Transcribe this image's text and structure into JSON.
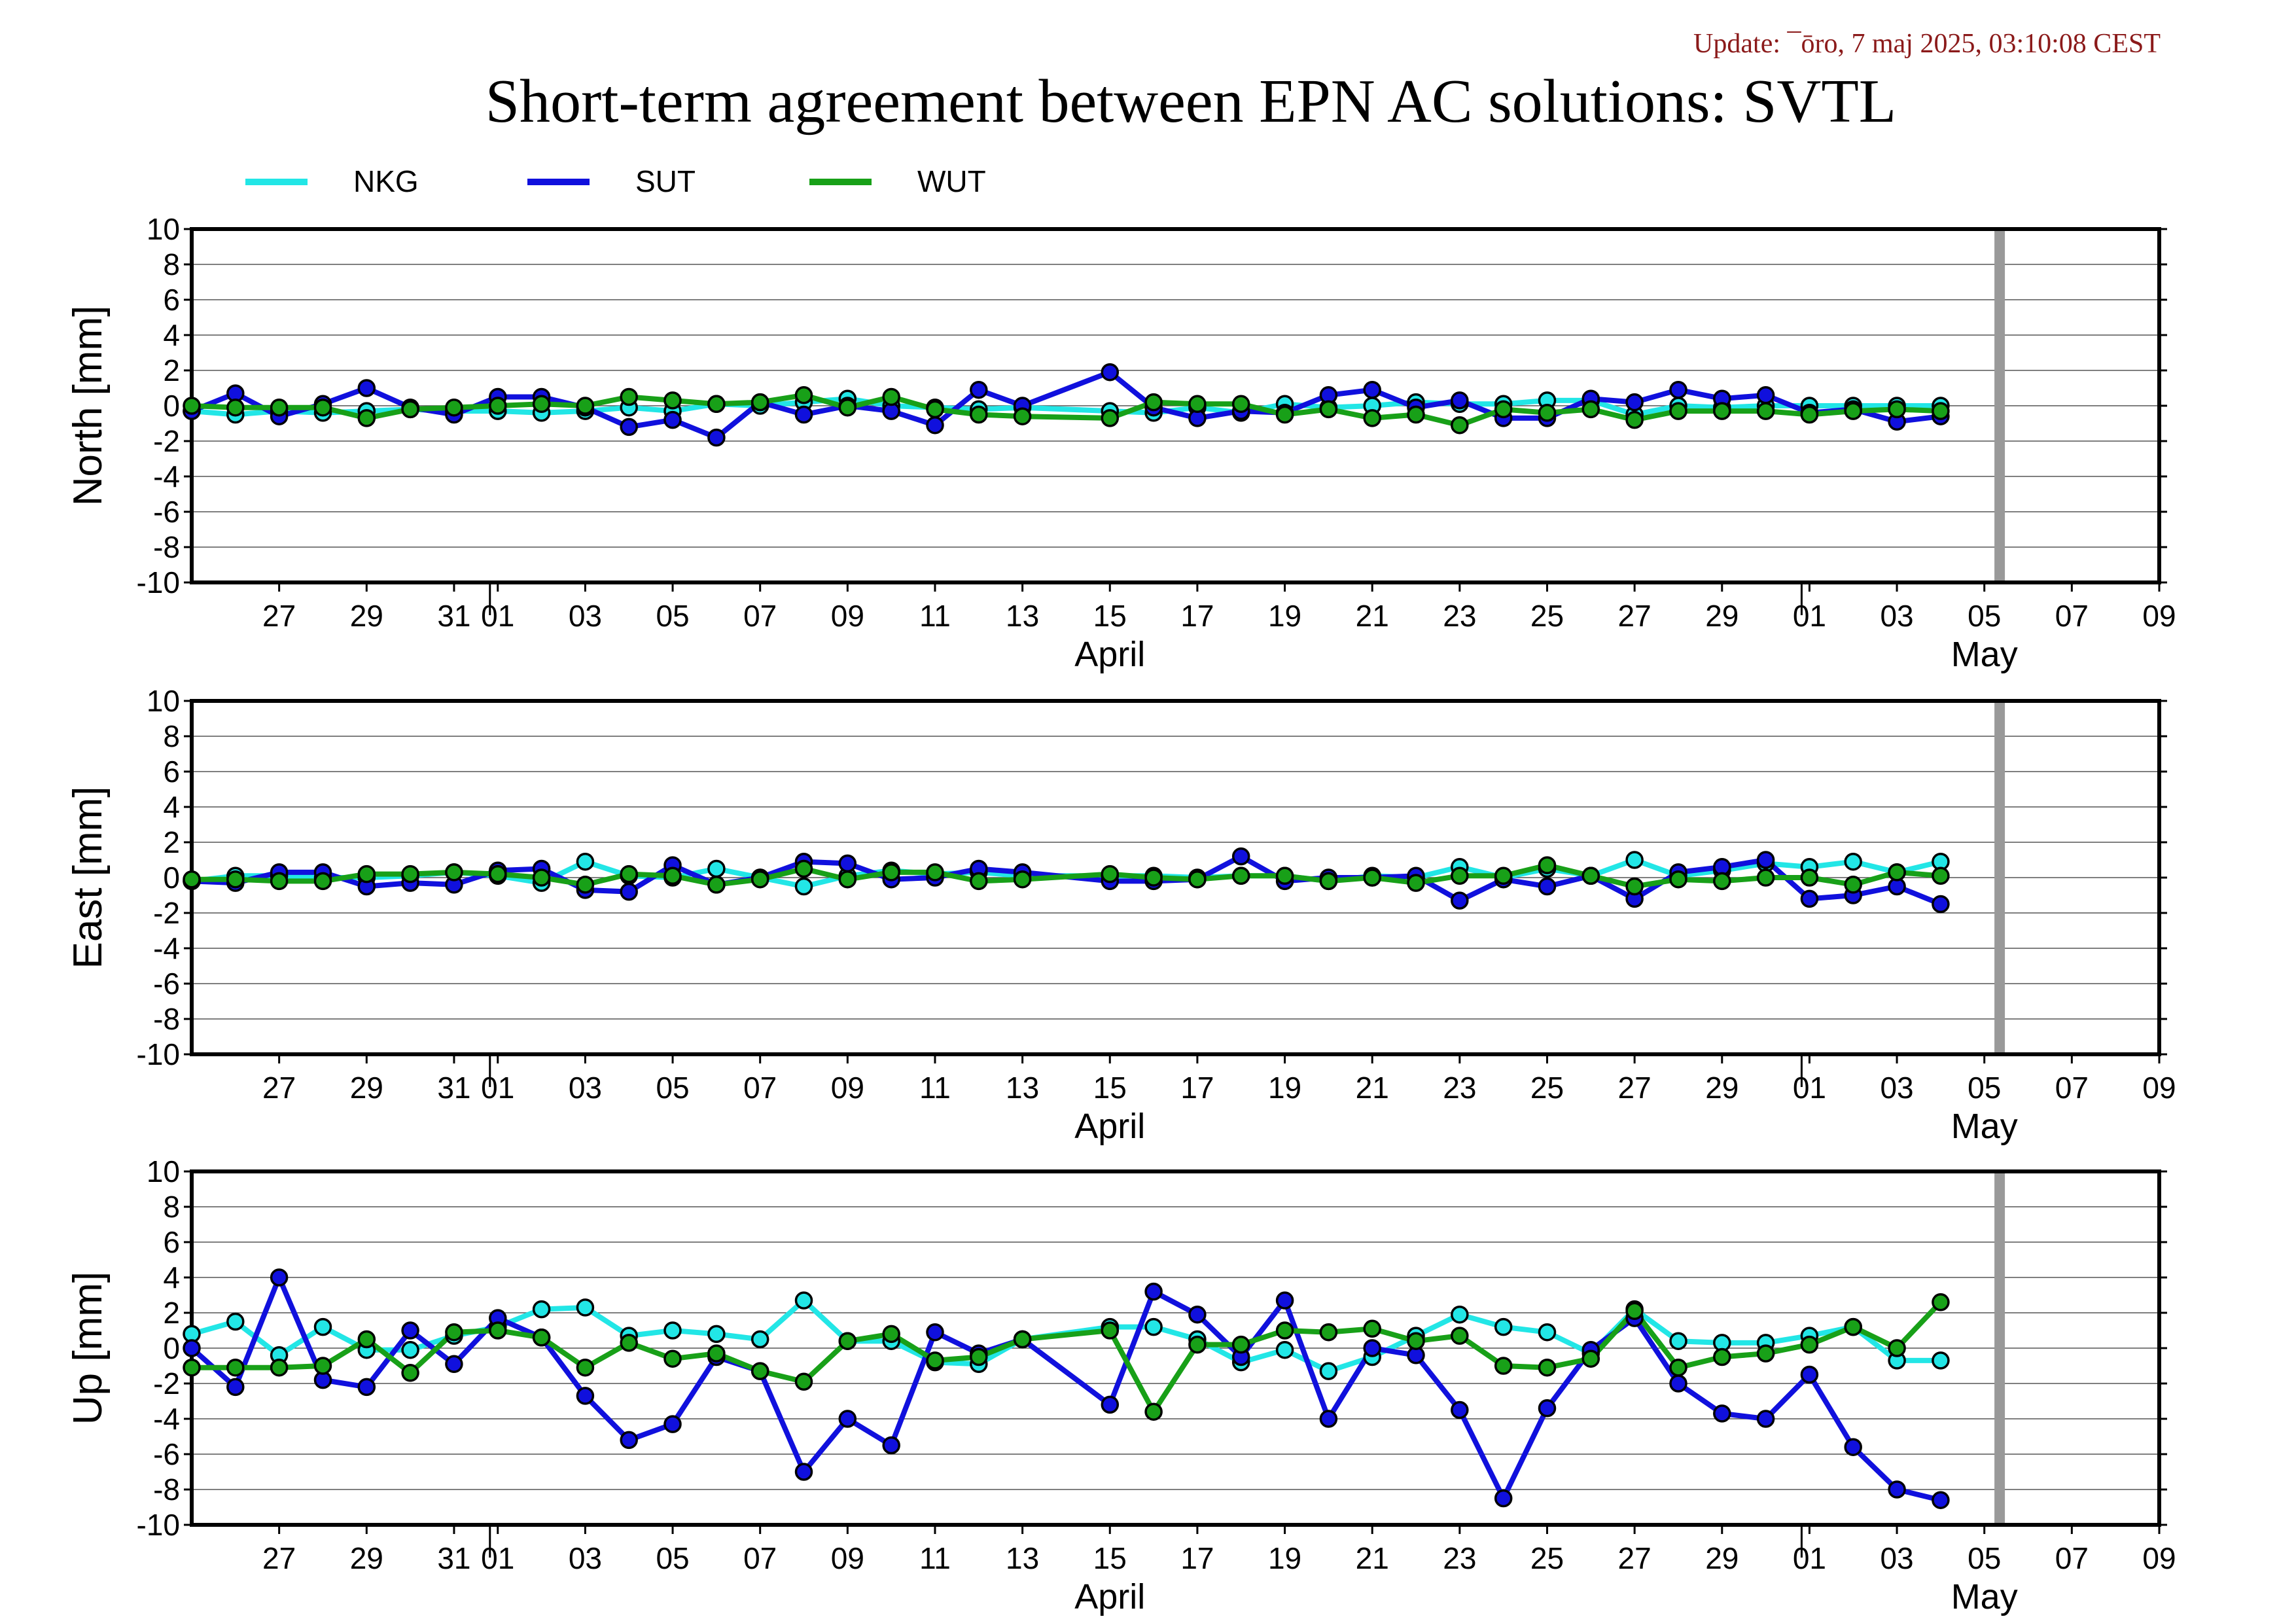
{
  "update_text": "Update: ¯ōro, 7 maj 2025, 03:10:08 CEST",
  "title": "Short-term agreement between EPN AC solutions: SVTL",
  "colors": {
    "NKG": "#22e6e6",
    "SUT": "#1010dd",
    "WUT": "#18a018",
    "marker_outline": "#000000",
    "future_band": "#999999",
    "grid": "#555555"
  },
  "legend": [
    {
      "name": "NKG",
      "color": "#22e6e6"
    },
    {
      "name": "SUT",
      "color": "#1010dd"
    },
    {
      "name": "WUT",
      "color": "#18a018"
    }
  ],
  "x_axis": {
    "tick_labels": [
      "27",
      "29",
      "31",
      "01",
      "03",
      "05",
      "07",
      "09",
      "11",
      "13",
      "15",
      "17",
      "19",
      "21",
      "23",
      "25",
      "27",
      "29",
      "01",
      "03",
      "05",
      "07",
      "09"
    ],
    "tick_dates": [
      "2025-03-27",
      "2025-03-29",
      "2025-03-31",
      "2025-04-01",
      "2025-04-03",
      "2025-04-05",
      "2025-04-07",
      "2025-04-09",
      "2025-04-11",
      "2025-04-13",
      "2025-04-15",
      "2025-04-17",
      "2025-04-19",
      "2025-04-21",
      "2025-04-23",
      "2025-04-25",
      "2025-04-27",
      "2025-04-29",
      "2025-05-01",
      "2025-05-03",
      "2025-05-05",
      "2025-05-07",
      "2025-05-09"
    ],
    "month_labels": [
      "April",
      "May"
    ]
  },
  "chart_data": [
    {
      "type": "line",
      "ylabel": "North [mm]",
      "ylim": [
        -10,
        10
      ],
      "yticks": [
        10,
        8,
        6,
        4,
        2,
        0,
        -2,
        -4,
        -6,
        -8,
        -10
      ],
      "xlim": [
        "2025-03-25",
        "2025-05-09"
      ],
      "grid": true,
      "marker_days": [
        0,
        1,
        2,
        3,
        4,
        5,
        6,
        7,
        8,
        9,
        10,
        11,
        12,
        13,
        14,
        15,
        16,
        17,
        18,
        19,
        21,
        22,
        23,
        24,
        25,
        26,
        27,
        28,
        29,
        30,
        31,
        32,
        33,
        34,
        35,
        36,
        37,
        38,
        39,
        40
      ],
      "series": [
        {
          "name": "NKG",
          "x": [
            "2025-03-25",
            "2025-03-26",
            "2025-03-27",
            "2025-03-28",
            "2025-03-29",
            "2025-03-30",
            "2025-03-31",
            "2025-04-01",
            "2025-04-02",
            "2025-04-03",
            "2025-04-04",
            "2025-04-05",
            "2025-04-06",
            "2025-04-07",
            "2025-04-08",
            "2025-04-09",
            "2025-04-10",
            "2025-04-11",
            "2025-04-12",
            "2025-04-13",
            "2025-04-15",
            "2025-04-16",
            "2025-04-17",
            "2025-04-18",
            "2025-04-19",
            "2025-04-20",
            "2025-04-21",
            "2025-04-22",
            "2025-04-23",
            "2025-04-24",
            "2025-04-25",
            "2025-04-26",
            "2025-04-27",
            "2025-04-28",
            "2025-04-29",
            "2025-04-30",
            "2025-05-01",
            "2025-05-02",
            "2025-05-03",
            "2025-05-04"
          ],
          "values": [
            -0.3,
            -0.5,
            -0.3,
            -0.4,
            -0.3,
            -0.2,
            -0.3,
            -0.3,
            -0.4,
            -0.3,
            -0.1,
            -0.3,
            0.1,
            0.0,
            0.2,
            0.4,
            0.0,
            -0.1,
            -0.2,
            -0.1,
            -0.3,
            -0.4,
            -0.1,
            -0.4,
            0.1,
            -0.1,
            0.0,
            0.2,
            0.1,
            0.1,
            0.3,
            0.3,
            -0.5,
            0.0,
            -0.1,
            0.0,
            0.0,
            0.0,
            0.0,
            0.0
          ]
        },
        {
          "name": "SUT",
          "x": [
            "2025-03-25",
            "2025-03-26",
            "2025-03-27",
            "2025-03-28",
            "2025-03-29",
            "2025-03-30",
            "2025-03-31",
            "2025-04-01",
            "2025-04-02",
            "2025-04-03",
            "2025-04-04",
            "2025-04-05",
            "2025-04-06",
            "2025-04-07",
            "2025-04-08",
            "2025-04-09",
            "2025-04-10",
            "2025-04-11",
            "2025-04-12",
            "2025-04-13",
            "2025-04-15",
            "2025-04-16",
            "2025-04-17",
            "2025-04-18",
            "2025-04-19",
            "2025-04-20",
            "2025-04-21",
            "2025-04-22",
            "2025-04-23",
            "2025-04-24",
            "2025-04-25",
            "2025-04-26",
            "2025-04-27",
            "2025-04-28",
            "2025-04-29",
            "2025-04-30",
            "2025-05-01",
            "2025-05-02",
            "2025-05-03",
            "2025-05-04"
          ],
          "values": [
            -0.3,
            0.7,
            -0.6,
            0.1,
            1.0,
            -0.1,
            -0.5,
            0.5,
            0.5,
            -0.1,
            -1.2,
            -0.8,
            -1.8,
            0.2,
            -0.5,
            0.0,
            -0.3,
            -1.1,
            0.9,
            0.0,
            1.9,
            -0.1,
            -0.7,
            -0.3,
            -0.4,
            0.6,
            0.9,
            -0.1,
            0.3,
            -0.7,
            -0.7,
            0.4,
            0.2,
            0.9,
            0.4,
            0.6,
            -0.4,
            -0.2,
            -0.9,
            -0.6
          ]
        },
        {
          "name": "WUT",
          "x": [
            "2025-03-25",
            "2025-03-26",
            "2025-03-27",
            "2025-03-28",
            "2025-03-29",
            "2025-03-30",
            "2025-03-31",
            "2025-04-01",
            "2025-04-02",
            "2025-04-03",
            "2025-04-04",
            "2025-04-05",
            "2025-04-06",
            "2025-04-07",
            "2025-04-08",
            "2025-04-09",
            "2025-04-10",
            "2025-04-11",
            "2025-04-12",
            "2025-04-13",
            "2025-04-15",
            "2025-04-16",
            "2025-04-17",
            "2025-04-18",
            "2025-04-19",
            "2025-04-20",
            "2025-04-21",
            "2025-04-22",
            "2025-04-23",
            "2025-04-24",
            "2025-04-25",
            "2025-04-26",
            "2025-04-27",
            "2025-04-28",
            "2025-04-29",
            "2025-04-30",
            "2025-05-01",
            "2025-05-02",
            "2025-05-03",
            "2025-05-04"
          ],
          "values": [
            0.0,
            -0.1,
            -0.1,
            -0.1,
            -0.7,
            -0.2,
            -0.1,
            0.0,
            0.1,
            0.0,
            0.5,
            0.3,
            0.1,
            0.2,
            0.6,
            -0.1,
            0.5,
            -0.2,
            -0.5,
            -0.6,
            -0.7,
            0.2,
            0.1,
            0.1,
            -0.5,
            -0.2,
            -0.7,
            -0.5,
            -1.1,
            -0.2,
            -0.4,
            -0.2,
            -0.8,
            -0.3,
            -0.3,
            -0.3,
            -0.5,
            -0.3,
            -0.2,
            -0.3
          ]
        }
      ]
    },
    {
      "type": "line",
      "ylabel": "East [mm]",
      "ylim": [
        -10,
        10
      ],
      "yticks": [
        10,
        8,
        6,
        4,
        2,
        0,
        -2,
        -4,
        -6,
        -8,
        -10
      ],
      "xlim": [
        "2025-03-25",
        "2025-05-09"
      ],
      "grid": true,
      "series": [
        {
          "name": "NKG",
          "x": [
            "2025-03-25",
            "2025-03-26",
            "2025-03-27",
            "2025-03-28",
            "2025-03-29",
            "2025-03-30",
            "2025-03-31",
            "2025-04-01",
            "2025-04-02",
            "2025-04-03",
            "2025-04-04",
            "2025-04-05",
            "2025-04-06",
            "2025-04-07",
            "2025-04-08",
            "2025-04-09",
            "2025-04-10",
            "2025-04-11",
            "2025-04-12",
            "2025-04-13",
            "2025-04-15",
            "2025-04-16",
            "2025-04-17",
            "2025-04-18",
            "2025-04-19",
            "2025-04-20",
            "2025-04-21",
            "2025-04-22",
            "2025-04-23",
            "2025-04-24",
            "2025-04-25",
            "2025-04-26",
            "2025-04-27",
            "2025-04-28",
            "2025-04-29",
            "2025-04-30",
            "2025-05-01",
            "2025-05-02",
            "2025-05-03",
            "2025-05-04"
          ],
          "values": [
            -0.2,
            0.1,
            0.1,
            0.0,
            0.0,
            0.1,
            0.3,
            0.1,
            -0.3,
            0.9,
            0.1,
            0.0,
            0.5,
            0.0,
            -0.5,
            0.1,
            0.4,
            0.2,
            0.3,
            0.1,
            0.1,
            0.1,
            0.0,
            0.1,
            0.1,
            -0.2,
            0.1,
            0.0,
            0.6,
            0.0,
            0.5,
            0.1,
            1.0,
            0.1,
            0.4,
            0.8,
            0.6,
            0.9,
            0.3,
            0.9
          ]
        },
        {
          "name": "SUT",
          "x": [
            "2025-03-25",
            "2025-03-26",
            "2025-03-27",
            "2025-03-28",
            "2025-03-29",
            "2025-03-30",
            "2025-03-31",
            "2025-04-01",
            "2025-04-02",
            "2025-04-03",
            "2025-04-04",
            "2025-04-05",
            "2025-04-06",
            "2025-04-07",
            "2025-04-08",
            "2025-04-09",
            "2025-04-10",
            "2025-04-11",
            "2025-04-12",
            "2025-04-13",
            "2025-04-15",
            "2025-04-16",
            "2025-04-17",
            "2025-04-18",
            "2025-04-19",
            "2025-04-20",
            "2025-04-21",
            "2025-04-22",
            "2025-04-23",
            "2025-04-24",
            "2025-04-25",
            "2025-04-26",
            "2025-04-27",
            "2025-04-28",
            "2025-04-29",
            "2025-04-30",
            "2025-05-01",
            "2025-05-02",
            "2025-05-03",
            "2025-05-04"
          ],
          "values": [
            -0.2,
            -0.3,
            0.3,
            0.3,
            -0.5,
            -0.3,
            -0.4,
            0.4,
            0.5,
            -0.7,
            -0.8,
            0.7,
            -0.4,
            0.0,
            0.9,
            0.8,
            -0.1,
            0.0,
            0.5,
            0.3,
            -0.2,
            -0.2,
            -0.1,
            1.2,
            -0.2,
            0.0,
            0.0,
            0.1,
            -1.3,
            -0.1,
            -0.5,
            0.1,
            -1.2,
            0.3,
            0.6,
            1.0,
            -1.2,
            -1.0,
            -0.5,
            -1.5
          ]
        },
        {
          "name": "WUT",
          "x": [
            "2025-03-25",
            "2025-03-26",
            "2025-03-27",
            "2025-03-28",
            "2025-03-29",
            "2025-03-30",
            "2025-03-31",
            "2025-04-01",
            "2025-04-02",
            "2025-04-03",
            "2025-04-04",
            "2025-04-05",
            "2025-04-06",
            "2025-04-07",
            "2025-04-08",
            "2025-04-09",
            "2025-04-10",
            "2025-04-11",
            "2025-04-12",
            "2025-04-13",
            "2025-04-15",
            "2025-04-16",
            "2025-04-17",
            "2025-04-18",
            "2025-04-19",
            "2025-04-20",
            "2025-04-21",
            "2025-04-22",
            "2025-04-23",
            "2025-04-24",
            "2025-04-25",
            "2025-04-26",
            "2025-04-27",
            "2025-04-28",
            "2025-04-29",
            "2025-04-30",
            "2025-05-01",
            "2025-05-02",
            "2025-05-03",
            "2025-05-04"
          ],
          "values": [
            -0.1,
            -0.1,
            -0.2,
            -0.2,
            0.2,
            0.2,
            0.3,
            0.2,
            0.0,
            -0.4,
            0.2,
            0.1,
            -0.4,
            -0.1,
            0.5,
            -0.1,
            0.3,
            0.3,
            -0.2,
            -0.1,
            0.2,
            0.0,
            -0.1,
            0.1,
            0.1,
            -0.2,
            0.0,
            -0.3,
            0.1,
            0.1,
            0.7,
            0.1,
            -0.5,
            -0.1,
            -0.2,
            0.0,
            0.0,
            -0.4,
            0.3,
            0.1
          ]
        }
      ]
    },
    {
      "type": "line",
      "ylabel": "Up [mm]",
      "ylim": [
        -10,
        10
      ],
      "yticks": [
        10,
        8,
        6,
        4,
        2,
        0,
        -2,
        -4,
        -6,
        -8,
        -10
      ],
      "xlim": [
        "2025-03-25",
        "2025-05-09"
      ],
      "grid": true,
      "series": [
        {
          "name": "NKG",
          "x": [
            "2025-03-25",
            "2025-03-26",
            "2025-03-27",
            "2025-03-28",
            "2025-03-29",
            "2025-03-30",
            "2025-03-31",
            "2025-04-01",
            "2025-04-02",
            "2025-04-03",
            "2025-04-04",
            "2025-04-05",
            "2025-04-06",
            "2025-04-07",
            "2025-04-08",
            "2025-04-09",
            "2025-04-10",
            "2025-04-11",
            "2025-04-12",
            "2025-04-13",
            "2025-04-15",
            "2025-04-16",
            "2025-04-17",
            "2025-04-18",
            "2025-04-19",
            "2025-04-20",
            "2025-04-21",
            "2025-04-22",
            "2025-04-23",
            "2025-04-24",
            "2025-04-25",
            "2025-04-26",
            "2025-04-27",
            "2025-04-28",
            "2025-04-29",
            "2025-04-30",
            "2025-05-01",
            "2025-05-02",
            "2025-05-03",
            "2025-05-04"
          ],
          "values": [
            0.8,
            1.5,
            -0.4,
            1.2,
            -0.1,
            -0.1,
            0.7,
            1.2,
            2.2,
            2.3,
            0.7,
            1.0,
            0.8,
            0.5,
            2.7,
            0.4,
            0.4,
            -0.8,
            -0.9,
            0.5,
            1.2,
            1.2,
            0.5,
            -0.8,
            -0.1,
            -1.3,
            -0.5,
            0.7,
            1.9,
            1.2,
            0.9,
            -0.3,
            2.2,
            0.4,
            0.3,
            0.3,
            0.7,
            1.2,
            -0.7,
            -0.7
          ]
        },
        {
          "name": "SUT",
          "x": [
            "2025-03-25",
            "2025-03-26",
            "2025-03-27",
            "2025-03-28",
            "2025-03-29",
            "2025-03-30",
            "2025-03-31",
            "2025-04-01",
            "2025-04-02",
            "2025-04-03",
            "2025-04-04",
            "2025-04-05",
            "2025-04-06",
            "2025-04-07",
            "2025-04-08",
            "2025-04-09",
            "2025-04-10",
            "2025-04-11",
            "2025-04-12",
            "2025-04-13",
            "2025-04-15",
            "2025-04-16",
            "2025-04-17",
            "2025-04-18",
            "2025-04-19",
            "2025-04-20",
            "2025-04-21",
            "2025-04-22",
            "2025-04-23",
            "2025-04-24",
            "2025-04-25",
            "2025-04-26",
            "2025-04-27",
            "2025-04-28",
            "2025-04-29",
            "2025-04-30",
            "2025-05-01",
            "2025-05-02",
            "2025-05-03",
            "2025-05-04"
          ],
          "values": [
            0.0,
            -2.2,
            4.0,
            -1.8,
            -2.2,
            1.0,
            -0.9,
            1.7,
            0.6,
            -2.7,
            -5.2,
            -4.3,
            -0.5,
            -1.3,
            -7.0,
            -4.0,
            -5.5,
            0.9,
            -0.3,
            0.5,
            -3.2,
            3.2,
            1.9,
            -0.5,
            2.7,
            -4.0,
            0.0,
            -0.4,
            -3.5,
            -8.5,
            -3.4,
            -0.1,
            1.7,
            -2.0,
            -3.7,
            -4.0,
            -1.5,
            -5.6,
            -8.0,
            -8.6
          ]
        },
        {
          "name": "WUT",
          "x": [
            "2025-03-25",
            "2025-03-26",
            "2025-03-27",
            "2025-03-28",
            "2025-03-29",
            "2025-03-30",
            "2025-03-31",
            "2025-04-01",
            "2025-04-02",
            "2025-04-03",
            "2025-04-04",
            "2025-04-05",
            "2025-04-06",
            "2025-04-07",
            "2025-04-08",
            "2025-04-09",
            "2025-04-10",
            "2025-04-11",
            "2025-04-12",
            "2025-04-13",
            "2025-04-15",
            "2025-04-16",
            "2025-04-17",
            "2025-04-18",
            "2025-04-19",
            "2025-04-20",
            "2025-04-21",
            "2025-04-22",
            "2025-04-23",
            "2025-04-24",
            "2025-04-25",
            "2025-04-26",
            "2025-04-27",
            "2025-04-28",
            "2025-04-29",
            "2025-04-30",
            "2025-05-01",
            "2025-05-02",
            "2025-05-03",
            "2025-05-04"
          ],
          "values": [
            -1.1,
            -1.1,
            -1.1,
            -1.0,
            0.5,
            -1.4,
            0.9,
            1.0,
            0.6,
            -1.1,
            0.3,
            -0.6,
            -0.3,
            -1.3,
            -1.9,
            0.4,
            0.8,
            -0.7,
            -0.5,
            0.5,
            1.0,
            -3.6,
            0.2,
            0.2,
            1.0,
            0.9,
            1.1,
            0.4,
            0.7,
            -1.0,
            -1.1,
            -0.6,
            2.1,
            -1.1,
            -0.5,
            -0.3,
            0.2,
            1.2,
            0.0,
            2.6
          ]
        }
      ]
    }
  ]
}
